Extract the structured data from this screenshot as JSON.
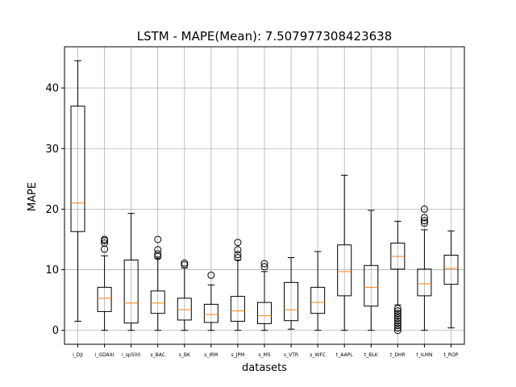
{
  "chart_data": {
    "type": "boxplot",
    "title": "LSTM - MAPE(Mean): 7.507977308423638",
    "xlabel": "datasets",
    "ylabel": "MAPE",
    "ylim": [
      -2.3,
      46.8
    ],
    "yticks": [
      0,
      10,
      20,
      30,
      40
    ],
    "grid": true,
    "colors": {
      "box": "#000000",
      "median": "#ff7f0e",
      "grid": "#b0b0b0"
    },
    "categories": [
      "i_DJI",
      "i_GDAXI",
      "i_sp500",
      "s_BAC",
      "s_BK",
      "s_IRM",
      "s_JPM",
      "s_MS",
      "s_VTR",
      "s_WFC",
      "t_AAPL",
      "t_BLK",
      "t_DHR",
      "t_ILMN",
      "t_ROP"
    ],
    "boxes": [
      {
        "whislo": 1.5,
        "q1": 16.3,
        "med": 21.0,
        "q3": 37.0,
        "whishi": 44.5,
        "fliers": []
      },
      {
        "whislo": 0.0,
        "q1": 3.1,
        "med": 5.3,
        "q3": 7.1,
        "whishi": 12.3,
        "fliers": [
          13.4,
          14.4,
          14.8,
          15.0
        ]
      },
      {
        "whislo": 0.0,
        "q1": 1.2,
        "med": 4.5,
        "q3": 11.6,
        "whishi": 19.3,
        "fliers": []
      },
      {
        "whislo": 0.0,
        "q1": 2.8,
        "med": 4.5,
        "q3": 6.5,
        "whishi": 11.9,
        "fliers": [
          12.2,
          12.6,
          13.3,
          15.0
        ]
      },
      {
        "whislo": 0.0,
        "q1": 1.7,
        "med": 3.4,
        "q3": 5.3,
        "whishi": 10.3,
        "fliers": [
          10.8,
          11.1
        ]
      },
      {
        "whislo": 0.0,
        "q1": 1.3,
        "med": 2.6,
        "q3": 4.3,
        "whishi": 7.5,
        "fliers": [
          9.1
        ]
      },
      {
        "whislo": 0.0,
        "q1": 1.5,
        "med": 3.2,
        "q3": 5.6,
        "whishi": 11.6,
        "fliers": [
          12.0,
          12.5,
          13.3,
          14.5
        ]
      },
      {
        "whislo": 0.0,
        "q1": 1.1,
        "med": 2.4,
        "q3": 4.6,
        "whishi": 9.7,
        "fliers": [
          10.5,
          11.0
        ]
      },
      {
        "whislo": 0.2,
        "q1": 1.6,
        "med": 3.4,
        "q3": 7.9,
        "whishi": 12.0,
        "fliers": []
      },
      {
        "whislo": 0.0,
        "q1": 2.8,
        "med": 4.6,
        "q3": 7.1,
        "whishi": 13.0,
        "fliers": []
      },
      {
        "whislo": 0.0,
        "q1": 5.7,
        "med": 9.7,
        "q3": 14.1,
        "whishi": 25.6,
        "fliers": []
      },
      {
        "whislo": 0.0,
        "q1": 4.0,
        "med": 7.1,
        "q3": 10.7,
        "whishi": 19.8,
        "fliers": []
      },
      {
        "whislo": 4.2,
        "q1": 10.1,
        "med": 12.2,
        "q3": 14.4,
        "whishi": 18.0,
        "fliers": [
          3.6,
          3.2,
          2.8,
          2.4,
          2.0,
          1.6,
          1.2,
          0.8,
          0.4,
          0.0
        ]
      },
      {
        "whislo": 0.0,
        "q1": 5.7,
        "med": 7.7,
        "q3": 10.1,
        "whishi": 16.6,
        "fliers": [
          17.7,
          18.1,
          18.6,
          20.0
        ]
      },
      {
        "whislo": 0.4,
        "q1": 7.6,
        "med": 10.2,
        "q3": 12.4,
        "whishi": 16.4,
        "fliers": []
      }
    ]
  }
}
